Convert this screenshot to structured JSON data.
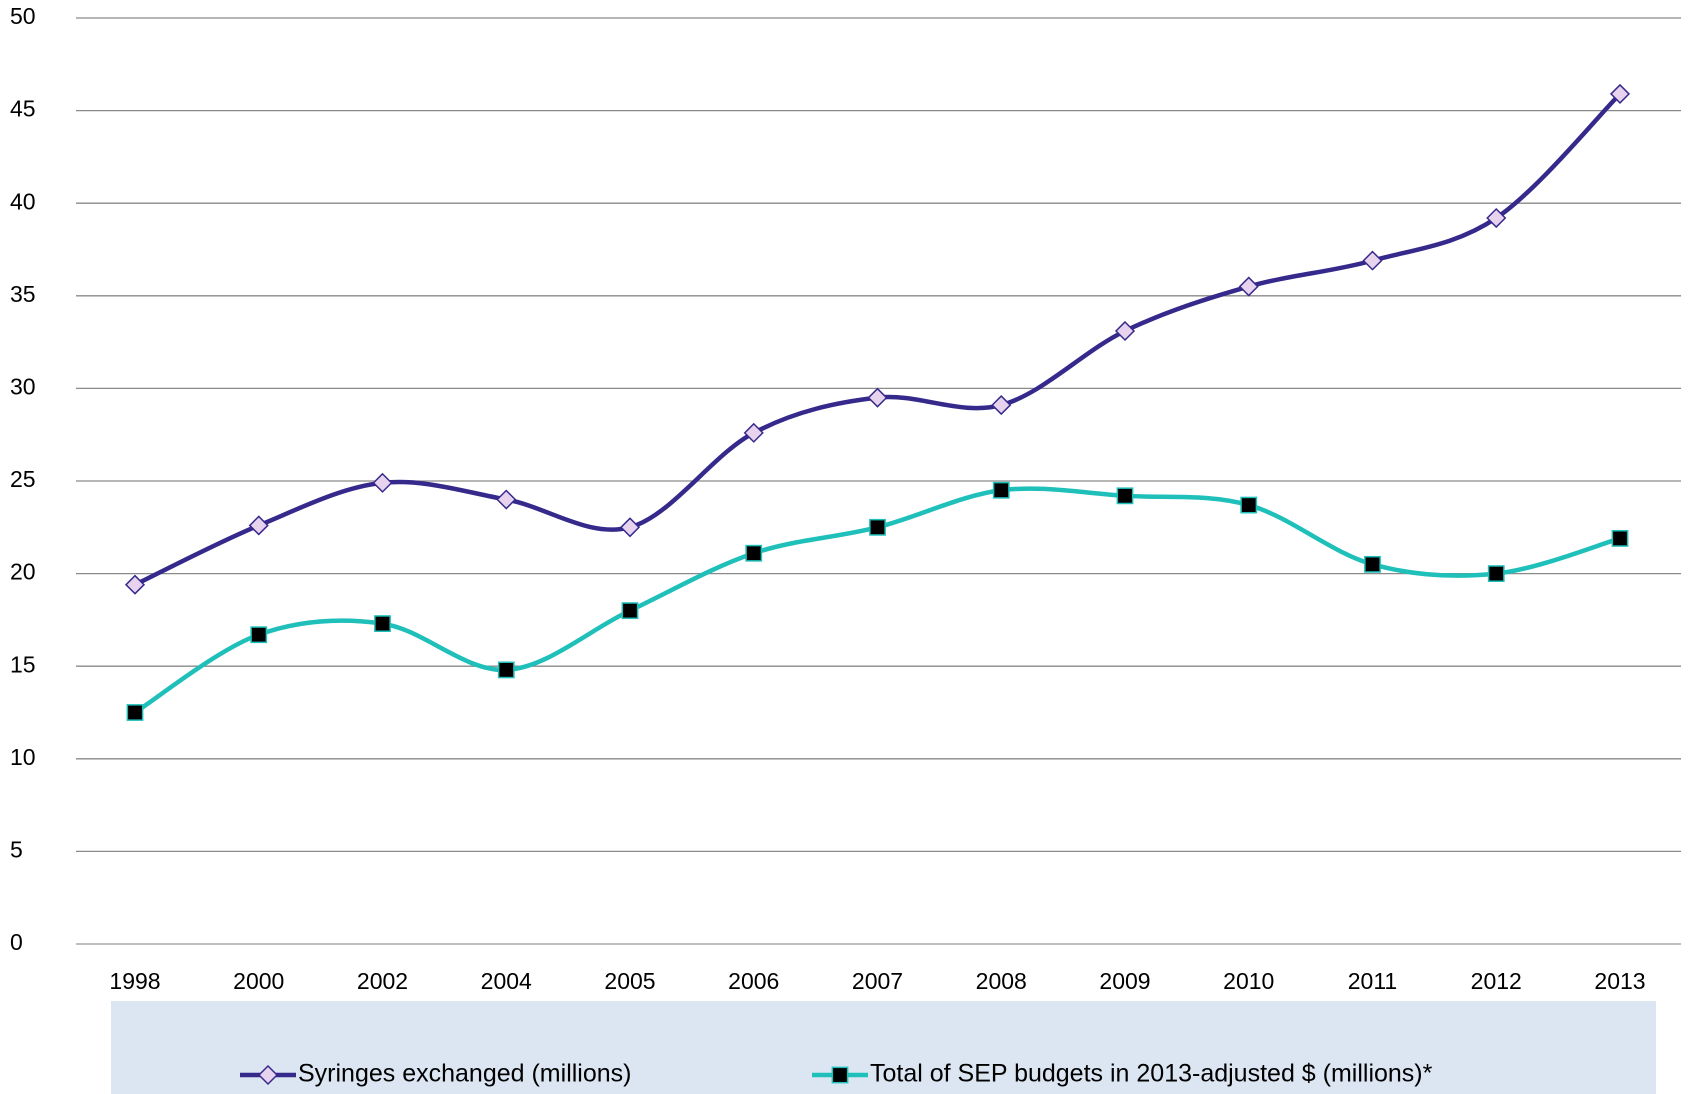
{
  "chart_data": {
    "type": "line",
    "categories": [
      "1998",
      "2000",
      "2002",
      "2004",
      "2005",
      "2006",
      "2007",
      "2008",
      "2009",
      "2010",
      "2011",
      "2012",
      "2013"
    ],
    "series": [
      {
        "name": "Syringes exchanged (millions)",
        "color": "#36298c",
        "marker": "diamond",
        "marker_fill": "#e8d3ef",
        "values": [
          19.4,
          22.6,
          24.9,
          24.0,
          22.5,
          27.6,
          29.5,
          29.1,
          33.1,
          35.5,
          36.9,
          39.2,
          45.9
        ]
      },
      {
        "name": "Total of SEP budgets in 2013-adjusted $ (millions)*",
        "color": "#1fbfba",
        "marker": "square",
        "marker_fill": "#000000",
        "values": [
          12.5,
          16.7,
          17.3,
          14.8,
          18.0,
          21.1,
          22.5,
          24.5,
          24.2,
          23.7,
          20.5,
          20.0,
          21.9
        ]
      }
    ],
    "ylim": [
      0,
      50
    ],
    "yticks": [
      0,
      5,
      10,
      15,
      20,
      25,
      30,
      35,
      40,
      45,
      50
    ],
    "grid": true,
    "legend": "bottom"
  }
}
